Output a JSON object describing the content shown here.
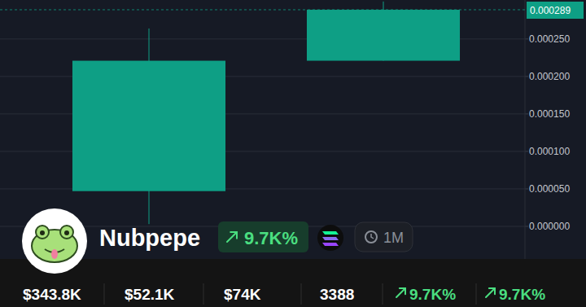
{
  "chart_data": {
    "type": "candlestick",
    "categories": [
      null,
      null
    ],
    "open": [
      4.7e-05,
      0.000221
    ],
    "high": [
      0.000264,
      0.0003
    ],
    "low": [
      3e-06,
      0.000221
    ],
    "close": [
      0.000221,
      0.000289
    ],
    "color": "#0e9f85",
    "ylim": [
      -4.35e-05,
      0.000302
    ],
    "yticks": [
      {
        "value": 0,
        "label": "0.000000"
      },
      {
        "value": 5e-05,
        "label": "0.000050"
      },
      {
        "value": 0.0001,
        "label": "0.000100"
      },
      {
        "value": 0.00015,
        "label": "0.000150"
      },
      {
        "value": 0.0002,
        "label": "0.000200"
      },
      {
        "value": 0.00025,
        "label": "0.000250"
      }
    ],
    "current_price": {
      "value": 0.000289,
      "label": "0.000289"
    },
    "grid": true,
    "tick_labels": "y"
  },
  "token": {
    "name": "Nubpepe",
    "change": "9.7K%",
    "timeframe": "1M",
    "stats": [
      "$343.8K",
      "$52.1K",
      "$74K",
      "3388"
    ],
    "changes": [
      "9.7K%",
      "9.7K%"
    ]
  }
}
